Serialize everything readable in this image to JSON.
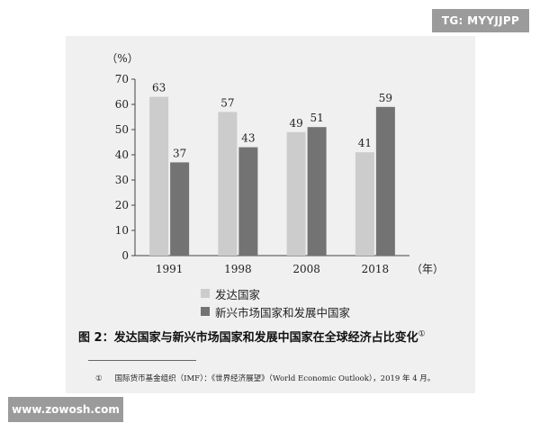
{
  "badges": {
    "top_right": "TG: MYYJJPP",
    "bottom_left": "www.zowosh.com"
  },
  "chart_data": {
    "type": "bar",
    "categories": [
      "1991",
      "1998",
      "2008",
      "2018"
    ],
    "series": [
      {
        "name": "发达国家",
        "values": [
          63,
          57,
          49,
          41
        ],
        "color": "#cccccc"
      },
      {
        "name": "新兴市场国家和发展中国家",
        "values": [
          37,
          43,
          51,
          59
        ],
        "color": "#737373"
      }
    ],
    "ylabel": "（%）",
    "xlabel": "（年）",
    "ylim": [
      0,
      70
    ],
    "yticks": [
      0,
      10,
      20,
      30,
      40,
      50,
      60,
      70
    ],
    "grid": false,
    "legend_position": "bottom"
  },
  "caption": {
    "text": "图 2：发达国家与新兴市场国家和发展中国家在全球经济占比变化",
    "marker": "①"
  },
  "footnote": {
    "marker": "①",
    "text": "国际货币基金组织（IMF）：《世界经济展望》（World Economic Outlook），2019 年 4 月。"
  }
}
